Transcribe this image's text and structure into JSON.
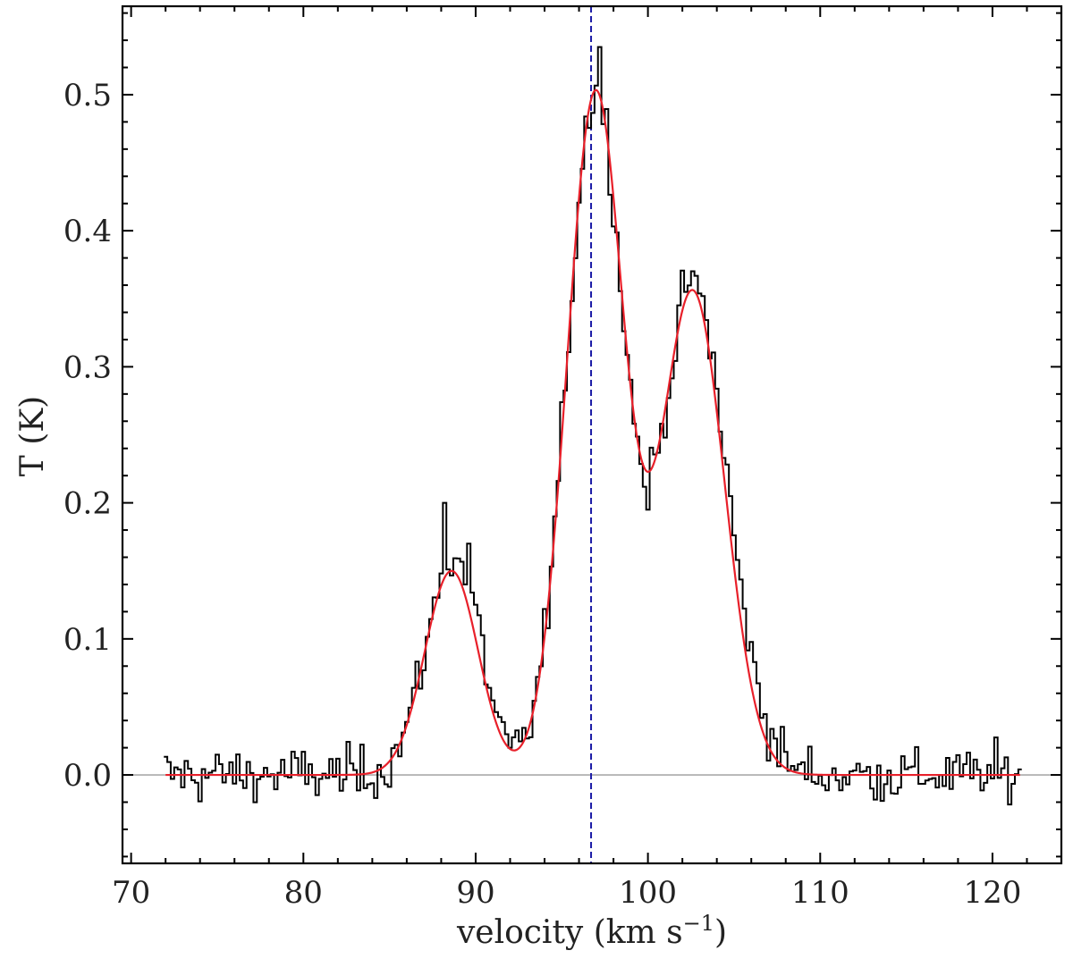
{
  "chart_data": {
    "type": "line",
    "title": "",
    "xlabel": "velocity (km s",
    "xlabel_sup": "−1",
    "xlabel_close": ")",
    "ylabel": "T (K)",
    "xlim": [
      69.5,
      124
    ],
    "ylim": [
      -0.065,
      0.565
    ],
    "xticks": [
      70,
      80,
      90,
      100,
      110,
      120
    ],
    "xtick_labels": [
      "70",
      "80",
      "90",
      "100",
      "110",
      "120"
    ],
    "yticks": [
      0.0,
      0.1,
      0.2,
      0.3,
      0.4,
      0.5
    ],
    "ytick_labels": [
      "0.0",
      "0.1",
      "0.2",
      "0.3",
      "0.4",
      "0.5"
    ],
    "grid": false,
    "legend": "none",
    "baseline": {
      "y": 0.0,
      "color": "#aaaaaa"
    },
    "reference_line": {
      "x": 96.7,
      "style": "dashed",
      "color": "#1a1aa6"
    },
    "series": [
      {
        "kind": "observed-spectrum-step",
        "color": "#000000",
        "x_range": [
          72.0,
          121.6
        ],
        "x_step": 0.2,
        "noise_rms": 0.01,
        "peak_points": [
          {
            "x": 88.3,
            "y": 0.2
          },
          {
            "x": 89.7,
            "y": 0.17
          },
          {
            "x": 97.3,
            "y": 0.535
          },
          {
            "x": 102.3,
            "y": 0.355
          },
          {
            "x": 100.0,
            "y": 0.195
          },
          {
            "x": 92.1,
            "y": 0.02
          }
        ]
      },
      {
        "kind": "gaussian-fit",
        "color": "#e8202a",
        "x_range": [
          72.0,
          121.6
        ],
        "components": [
          {
            "amplitude": 0.15,
            "center": 88.6,
            "sigma": 1.55
          },
          {
            "amplitude": 0.5,
            "center": 96.95,
            "sigma": 1.65
          },
          {
            "amplitude": 0.355,
            "center": 102.6,
            "sigma": 1.85
          }
        ]
      }
    ]
  }
}
